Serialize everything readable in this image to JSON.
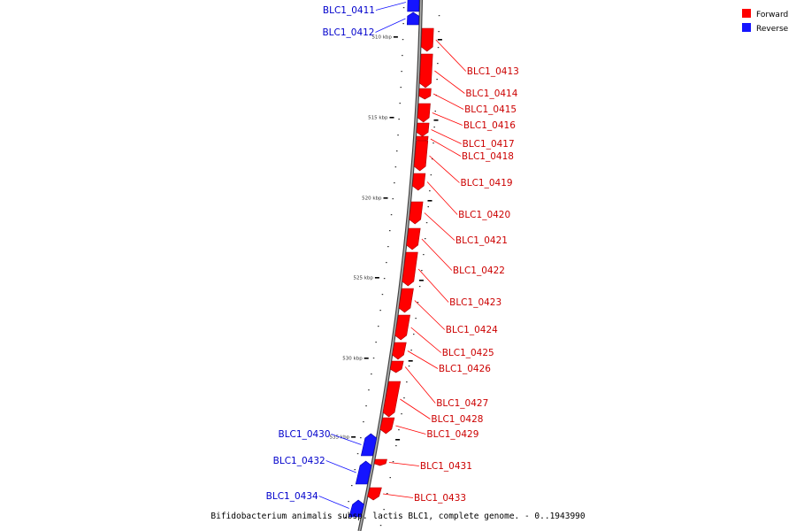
{
  "colors": {
    "forward": "#ff0000",
    "reverse": "#1515ff",
    "backbone": "#808080"
  },
  "legend": {
    "forward_label": "Forward",
    "reverse_label": "Reverse"
  },
  "caption": "Bifidobacterium animalis subsp. lactis BLC1, complete genome. - 0..1943990",
  "scale_labels": [
    "510 kbp",
    "515 kbp",
    "520 kbp",
    "525 kbp",
    "530 kbp",
    "535 kbp"
  ],
  "genes": [
    {
      "name": "BLC1_0411",
      "strand": "reverse"
    },
    {
      "name": "BLC1_0412",
      "strand": "reverse"
    },
    {
      "name": "BLC1_0413",
      "strand": "forward"
    },
    {
      "name": "BLC1_0414",
      "strand": "forward"
    },
    {
      "name": "BLC1_0415",
      "strand": "forward"
    },
    {
      "name": "BLC1_0416",
      "strand": "forward"
    },
    {
      "name": "BLC1_0417",
      "strand": "forward"
    },
    {
      "name": "BLC1_0418",
      "strand": "forward"
    },
    {
      "name": "BLC1_0419",
      "strand": "forward"
    },
    {
      "name": "BLC1_0420",
      "strand": "forward"
    },
    {
      "name": "BLC1_0421",
      "strand": "forward"
    },
    {
      "name": "BLC1_0422",
      "strand": "forward"
    },
    {
      "name": "BLC1_0423",
      "strand": "forward"
    },
    {
      "name": "BLC1_0424",
      "strand": "forward"
    },
    {
      "name": "BLC1_0425",
      "strand": "forward"
    },
    {
      "name": "BLC1_0426",
      "strand": "forward"
    },
    {
      "name": "BLC1_0427",
      "strand": "forward"
    },
    {
      "name": "BLC1_0428",
      "strand": "forward"
    },
    {
      "name": "BLC1_0429",
      "strand": "forward"
    },
    {
      "name": "BLC1_0430",
      "strand": "reverse"
    },
    {
      "name": "BLC1_0431",
      "strand": "forward"
    },
    {
      "name": "BLC1_0432",
      "strand": "reverse"
    },
    {
      "name": "BLC1_0433",
      "strand": "forward"
    },
    {
      "name": "BLC1_0434",
      "strand": "reverse"
    }
  ]
}
